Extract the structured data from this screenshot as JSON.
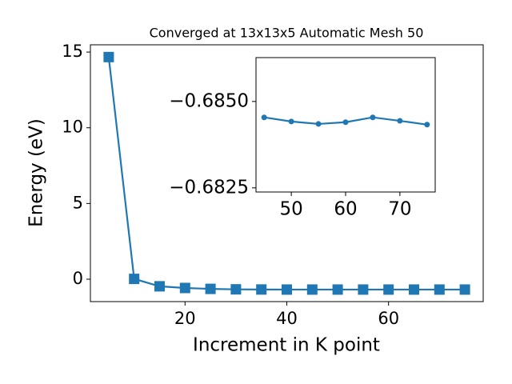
{
  "chart_data": [
    {
      "type": "line",
      "title": "Converged at 13x13x5 Automatic Mesh 50",
      "x_label": "Increment in K point",
      "y_label": "Energy (eV)",
      "x": [
        5,
        10,
        15,
        20,
        25,
        30,
        35,
        40,
        45,
        50,
        55,
        60,
        65,
        70,
        75
      ],
      "values": [
        14.67,
        0.02,
        -0.47,
        -0.58,
        -0.64,
        -0.67,
        -0.68,
        -0.6846,
        -0.68454,
        -0.68442,
        -0.68435,
        -0.6844,
        -0.68454,
        -0.68444,
        -0.68433
      ],
      "color": "#1f77b4",
      "marker": "square",
      "xlim": [
        1.4,
        78.6
      ],
      "ylim": [
        -1.48,
        15.48
      ],
      "xticks": [
        20,
        40,
        60
      ],
      "yticks": [
        0,
        5,
        10,
        15
      ]
    },
    {
      "type": "line",
      "x": [
        45,
        50,
        55,
        60,
        65,
        70,
        75
      ],
      "values": [
        -0.68454,
        -0.68442,
        -0.68435,
        -0.6844,
        -0.68454,
        -0.68444,
        -0.68433
      ],
      "color": "#1f77b4",
      "marker": "circle",
      "xlim": [
        43.5,
        76.5
      ],
      "ylim": [
        -0.68238,
        -0.68627
      ],
      "xticks": [
        50,
        60,
        70
      ],
      "yticks": [
        {
          "value": -0.685,
          "label": "−0.6850"
        },
        {
          "value": -0.6825,
          "label": "−0.6825"
        }
      ]
    }
  ]
}
